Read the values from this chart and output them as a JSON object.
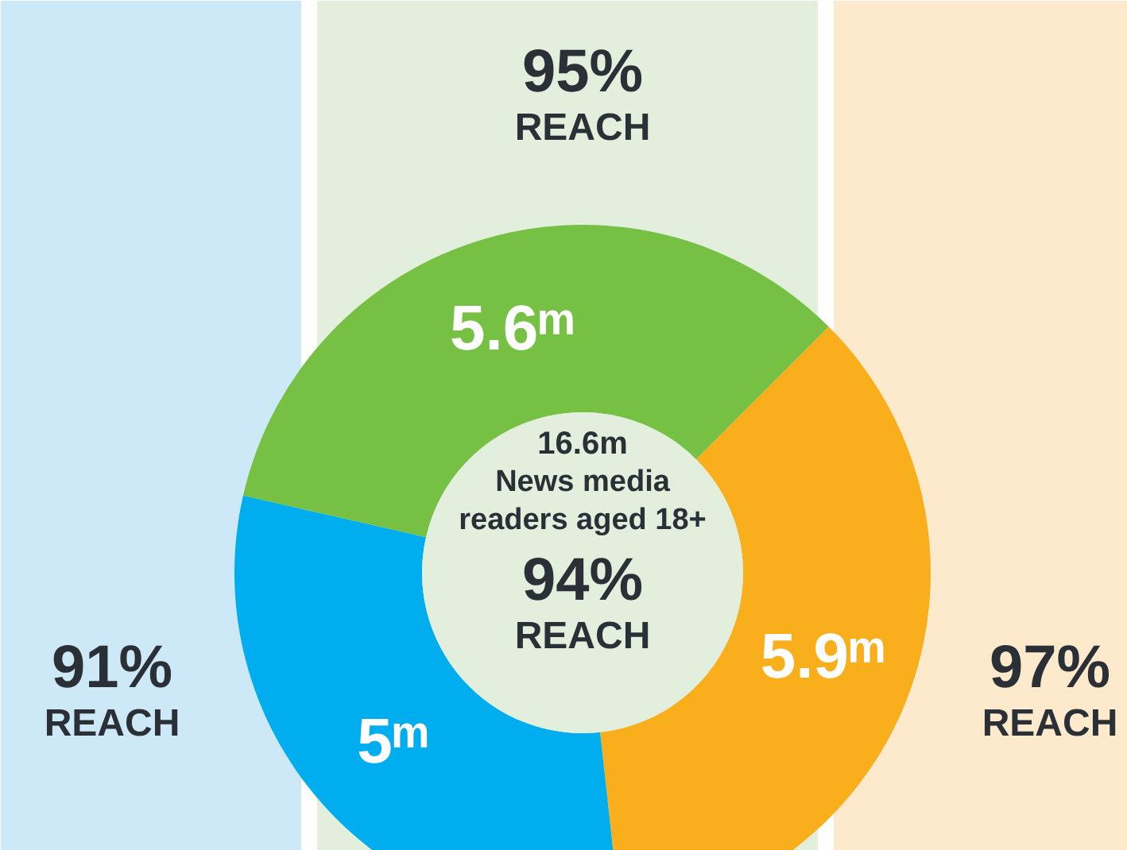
{
  "chart_data": {
    "type": "donut",
    "categories": [
      null,
      null,
      null
    ],
    "values": [
      5.9,
      5,
      5.6
    ],
    "colors": [
      "#f9ae1b",
      "#00aeef",
      "#76c043"
    ],
    "value_labels": [
      "5.9ᵐ",
      "5ᵐ",
      "5.6ᵐ"
    ],
    "annotations": [
      "95%\nREACH",
      "91%\nREACH",
      "97%\nREACH",
      "16.6m\nNews media\nreaders aged 18+",
      "94%\nREACH"
    ]
  }
}
